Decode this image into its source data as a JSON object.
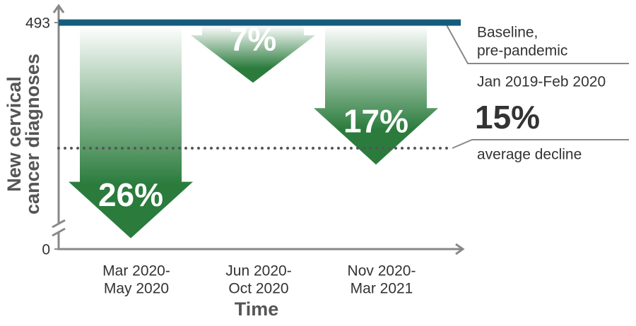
{
  "chart_data": {
    "type": "arrow",
    "y_label": [
      "New cervical",
      "cancer diagnoses"
    ],
    "x_label": "Time",
    "categories": [
      [
        "Mar 2020-",
        "May 2020"
      ],
      [
        "Jun 2020-",
        "Oct 2020"
      ],
      [
        "Nov 2020-",
        "Mar 2021"
      ]
    ],
    "values": [
      26,
      7,
      17
    ],
    "value_labels": [
      "26%",
      "7%",
      "17%"
    ],
    "color": "#2a7b3c",
    "ylim": [
      0,
      493
    ],
    "yticks": [
      0,
      493
    ],
    "baseline": {
      "value": 493,
      "color": "#155c7c",
      "label": [
        "Baseline,",
        "pre-pandemic"
      ],
      "period": "Jan 2019-Feb 2020"
    },
    "average": {
      "value": 15,
      "value_label": "15%",
      "text": "average decline"
    }
  }
}
